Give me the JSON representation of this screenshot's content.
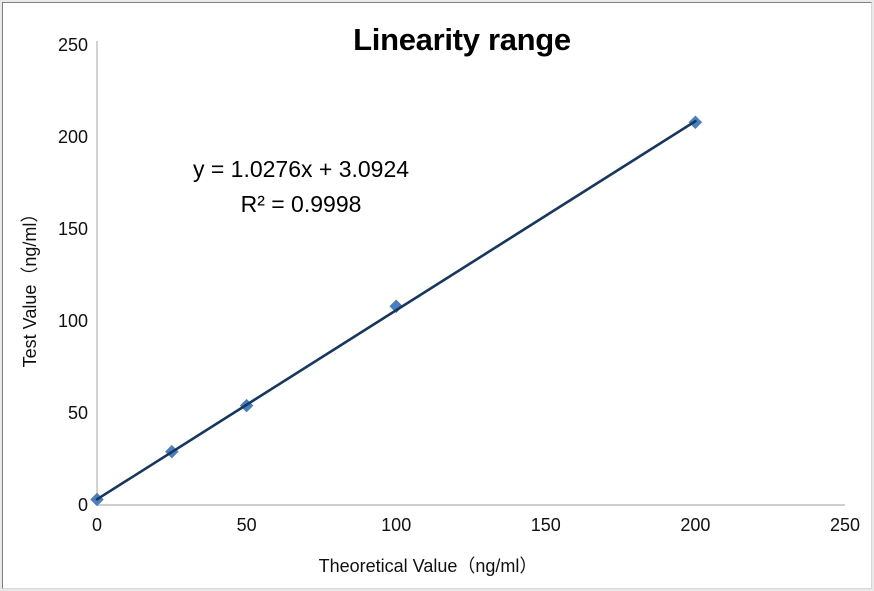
{
  "chart_data": {
    "type": "scatter",
    "title": "Linearity range",
    "xlabel": "Theoretical Value（ng/ml）",
    "ylabel": "Test Value（ng/ml）",
    "xlim": [
      0,
      250
    ],
    "ylim": [
      0,
      250
    ],
    "x_ticks": [
      0,
      50,
      100,
      150,
      200,
      250
    ],
    "y_ticks": [
      0,
      50,
      100,
      150,
      200,
      250
    ],
    "grid": false,
    "legend": false,
    "axis_color": "#bfbfbf",
    "text_color": "#111111",
    "series": [
      {
        "name": "Test Value",
        "marker": "diamond",
        "color": "#4a7ebc",
        "x": [
          0,
          25,
          50,
          100,
          200
        ],
        "y": [
          3,
          29,
          54,
          108,
          208
        ]
      }
    ],
    "trendline": {
      "slope": 1.0276,
      "intercept": 3.0924,
      "x_start": 0,
      "x_end": 200,
      "color": "#17375e",
      "equation_label": "y = 1.0276x + 3.0924",
      "r_squared_label": "R² = 0.9998"
    }
  }
}
